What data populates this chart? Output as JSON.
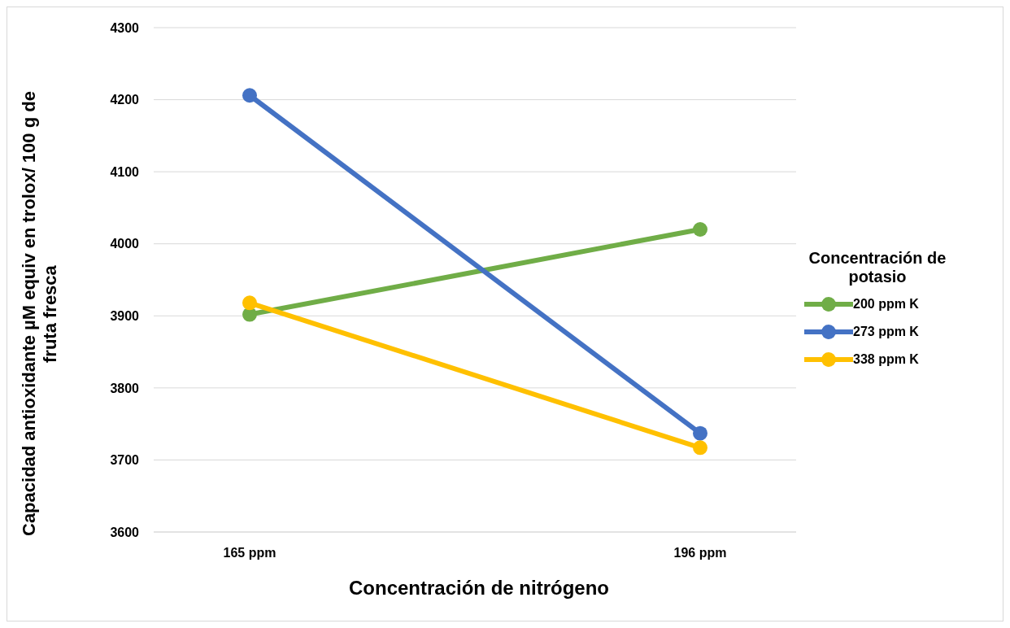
{
  "chart_data": {
    "type": "line",
    "xlabel": "Concentración de nitrógeno",
    "ylabel": "Capacidad antioxidante µM equiv en trolox/ 100 g de fruta fresca",
    "legend_title": "Concentración de potasio",
    "categories": [
      "165 ppm",
      "196 ppm"
    ],
    "series": [
      {
        "name": "200 ppm K",
        "color": "#70ad47",
        "values": [
          3902,
          4020
        ]
      },
      {
        "name": "273 ppm K",
        "color": "#4472c4",
        "values": [
          4206,
          3737
        ]
      },
      {
        "name": "338 ppm K",
        "color": "#ffc000",
        "values": [
          3918,
          3717
        ]
      }
    ],
    "ylim": [
      3600,
      4300
    ],
    "yticks": [
      3600,
      3700,
      3800,
      3900,
      4000,
      4100,
      4200,
      4300
    ],
    "grid": "y",
    "legend": "right",
    "marker": "circle",
    "line_style": "solid"
  }
}
